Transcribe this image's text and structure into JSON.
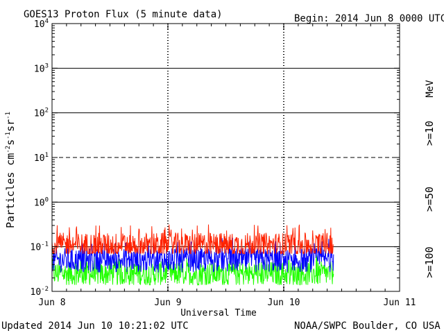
{
  "header": {
    "title": "GOES13 Proton Flux (5 minute data)",
    "begin": "Begin: 2014 Jun 8 0000 UTC"
  },
  "footer": {
    "updated": "Updated 2014 Jun 10 10:21:02 UTC",
    "credit": "NOAA/SWPC Boulder, CO USA"
  },
  "chart_data": {
    "type": "line",
    "title": "GOES13 Proton Flux (5 minute data)",
    "xlabel": "Universal Time",
    "ylabel": "Particles cm-2s-1sr-1",
    "y_scale": "log",
    "ylim": [
      0.01,
      10000
    ],
    "x_ticks": [
      "Jun 8",
      "Jun 9",
      "Jun 10",
      "Jun 11"
    ],
    "xlim_days": [
      0,
      3
    ],
    "y_ticks": [
      {
        "base": "10",
        "exp": "4"
      },
      {
        "base": "10",
        "exp": "3"
      },
      {
        "base": "10",
        "exp": "2"
      },
      {
        "base": "10",
        "exp": "1"
      },
      {
        "base": "10",
        "exp": "0"
      },
      {
        "base": "10",
        "exp": "-1"
      },
      {
        "base": "10",
        "exp": "-2"
      }
    ],
    "grid": "horizontal solid at decades, dashed at 10^1; vertical dashed at day boundaries",
    "energy_unit": "MeV",
    "series": [
      {
        "name": ">=10",
        "color": "#ff2200",
        "level_mean": 0.11,
        "level_min": 0.07,
        "level_max": 0.32
      },
      {
        "name": ">=50",
        "color": "#0000ff",
        "level_mean": 0.05,
        "level_min": 0.025,
        "level_max": 0.16
      },
      {
        "name": ">=100",
        "color": "#22ff00",
        "level_mean": 0.025,
        "level_min": 0.014,
        "level_max": 0.07
      }
    ],
    "data_end_day": 2.43
  }
}
